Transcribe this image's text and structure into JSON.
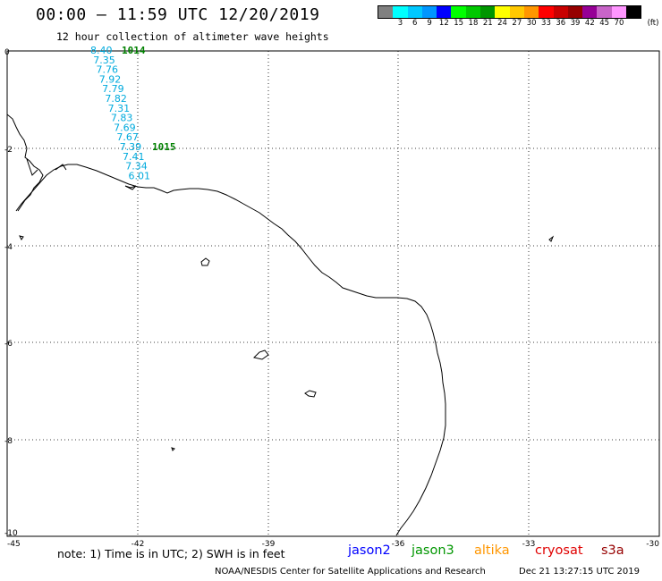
{
  "header": {
    "title": "00:00 – 11:59 UTC 12/20/2019",
    "subtitle": "12 hour collection of altimeter wave heights"
  },
  "legend": {
    "unit": "(ft)",
    "bins": [
      {
        "label": "",
        "color": "#808080"
      },
      {
        "label": "3",
        "color": "#00ffff"
      },
      {
        "label": "6",
        "color": "#00c8ff"
      },
      {
        "label": "9",
        "color": "#0096ff"
      },
      {
        "label": "12",
        "color": "#0000ff"
      },
      {
        "label": "15",
        "color": "#00ff00"
      },
      {
        "label": "18",
        "color": "#00c800"
      },
      {
        "label": "21",
        "color": "#009600"
      },
      {
        "label": "24",
        "color": "#ffff00"
      },
      {
        "label": "27",
        "color": "#ffc800"
      },
      {
        "label": "30",
        "color": "#ff9600"
      },
      {
        "label": "33",
        "color": "#ff0000"
      },
      {
        "label": "36",
        "color": "#c80000"
      },
      {
        "label": "39",
        "color": "#960000"
      },
      {
        "label": "42",
        "color": "#960096"
      },
      {
        "label": "45",
        "color": "#c864c8"
      },
      {
        "label": "70",
        "color": "#ff96ff"
      },
      {
        "label": "",
        "color": "#000000"
      }
    ]
  },
  "map": {
    "lon_ticks": [
      "-45",
      "-42",
      "-39",
      "-36",
      "-33",
      "-30"
    ],
    "lat_ticks": [
      "0",
      "-2",
      "-4",
      "-6",
      "-8",
      "-10"
    ],
    "track_color": "#00aadd",
    "pressure_color": "#008000",
    "observations": [
      "8.40",
      "7.35",
      "7.76",
      "7.92",
      "7.79",
      "7.82",
      "7.31",
      "7.83",
      "7.69",
      "7.67",
      "7.39",
      "7.41",
      "7.34",
      "6.01"
    ],
    "pressure_labels": [
      "1014",
      "1015"
    ]
  },
  "footer": {
    "note": "note: 1) Time is in UTC; 2) SWH is in feet",
    "satellites": [
      {
        "name": "jason2",
        "color": "#0000ff"
      },
      {
        "name": "jason3",
        "color": "#009600"
      },
      {
        "name": "altika",
        "color": "#ff9600"
      },
      {
        "name": "cryosat",
        "color": "#e00000"
      },
      {
        "name": "s3a",
        "color": "#960000"
      }
    ],
    "credit": "NOAA/NESDIS Center for Satellite Applications and Research",
    "generated": "Dec 21 13:27:15 UTC 2019"
  }
}
